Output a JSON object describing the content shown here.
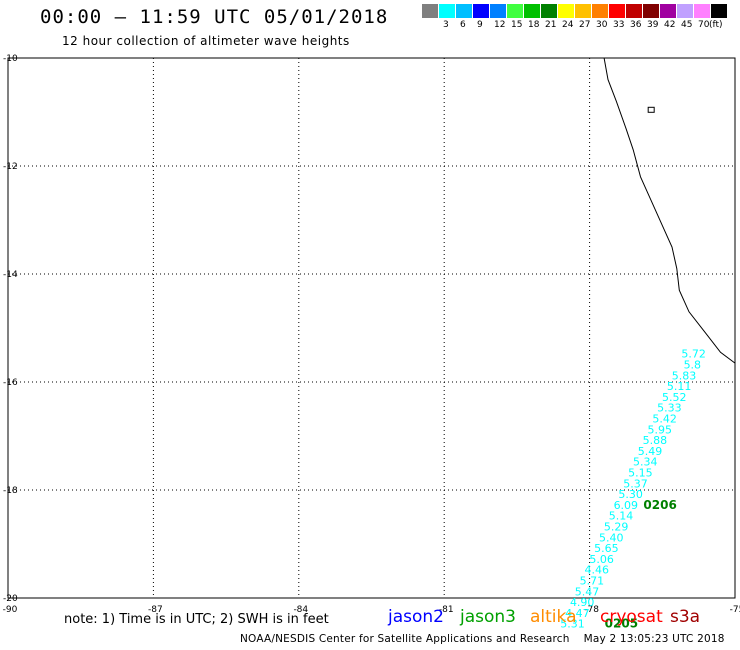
{
  "header": {
    "title": "00:00 – 11:59 UTC 05/01/2018",
    "subtitle": "12 hour collection of altimeter wave heights"
  },
  "legend": {
    "unit": "(ft)",
    "swatches": [
      {
        "color": "#7f7f7f",
        "label": ""
      },
      {
        "color": "#00ffff",
        "label": "3"
      },
      {
        "color": "#00bfff",
        "label": "6"
      },
      {
        "color": "#0000ff",
        "label": "9"
      },
      {
        "color": "#0080ff",
        "label": "12"
      },
      {
        "color": "#40ff40",
        "label": "15"
      },
      {
        "color": "#00c000",
        "label": "18"
      },
      {
        "color": "#008000",
        "label": "21"
      },
      {
        "color": "#ffff00",
        "label": "24"
      },
      {
        "color": "#ffc000",
        "label": "27"
      },
      {
        "color": "#ff8000",
        "label": "30"
      },
      {
        "color": "#ff0000",
        "label": "33"
      },
      {
        "color": "#c00000",
        "label": "36"
      },
      {
        "color": "#800000",
        "label": "39"
      },
      {
        "color": "#a000a0",
        "label": "42"
      },
      {
        "color": "#c0a0ff",
        "label": "45"
      },
      {
        "color": "#ff80ff",
        "label": "70"
      },
      {
        "color": "#000000",
        "label": ""
      }
    ]
  },
  "map": {
    "lon_range": [
      -90,
      -75
    ],
    "lat_range": [
      -20,
      -10
    ],
    "lon_ticks": [
      "-90",
      "-87",
      "-84",
      "-81",
      "-78",
      "-75"
    ],
    "lat_ticks": [
      "-10",
      "-12",
      "-14",
      "-16",
      "-18",
      "-20"
    ],
    "track_color": "#00ffff",
    "pass_label_color": "#008000",
    "track_readings": [
      {
        "lon": -75.6,
        "lat": -15.55,
        "label": "5.72"
      },
      {
        "lon": -75.7,
        "lat": -15.75,
        "label": "5.8"
      },
      {
        "lon": -75.8,
        "lat": -15.95,
        "label": "5.83"
      },
      {
        "lon": -75.9,
        "lat": -16.15,
        "label": "5.11"
      },
      {
        "lon": -76.0,
        "lat": -16.35,
        "label": "5.52"
      },
      {
        "lon": -76.1,
        "lat": -16.55,
        "label": "5.33"
      },
      {
        "lon": -76.2,
        "lat": -16.75,
        "label": "5.42"
      },
      {
        "lon": -76.3,
        "lat": -16.95,
        "label": "5.95"
      },
      {
        "lon": -76.4,
        "lat": -17.15,
        "label": "5.88"
      },
      {
        "lon": -76.5,
        "lat": -17.35,
        "label": "5.49"
      },
      {
        "lon": -76.6,
        "lat": -17.55,
        "label": "5.34"
      },
      {
        "lon": -76.7,
        "lat": -17.75,
        "label": "5.15"
      },
      {
        "lon": -76.8,
        "lat": -17.95,
        "label": "5.37"
      },
      {
        "lon": -76.9,
        "lat": -18.15,
        "label": "5.30"
      },
      {
        "lon": -77.0,
        "lat": -18.35,
        "label": "6.09"
      },
      {
        "lon": -77.1,
        "lat": -18.55,
        "label": "5.14"
      },
      {
        "lon": -77.2,
        "lat": -18.75,
        "label": "5.29"
      },
      {
        "lon": -77.3,
        "lat": -18.95,
        "label": "5.40"
      },
      {
        "lon": -77.4,
        "lat": -19.15,
        "label": "5.65"
      },
      {
        "lon": -77.5,
        "lat": -19.35,
        "label": "5.06"
      },
      {
        "lon": -77.6,
        "lat": -19.55,
        "label": "4.46"
      },
      {
        "lon": -77.7,
        "lat": -19.75,
        "label": "5.71"
      },
      {
        "lon": -77.8,
        "lat": -19.95,
        "label": "5.47"
      },
      {
        "lon": -77.9,
        "lat": -20.15,
        "label": "4.90"
      },
      {
        "lon": -78.0,
        "lat": -20.35,
        "label": "4.47"
      },
      {
        "lon": -78.1,
        "lat": -20.55,
        "label": "5.31"
      }
    ],
    "pass_labels": [
      {
        "lon": -76.2,
        "lat": -18.35,
        "label": "0206"
      },
      {
        "lon": -77.0,
        "lat": -20.55,
        "label": "0205"
      }
    ],
    "coastline": [
      [
        -77.7,
        -10.0
      ],
      [
        -77.62,
        -10.4
      ],
      [
        -77.45,
        -10.8
      ],
      [
        -77.25,
        -11.3
      ],
      [
        -77.1,
        -11.7
      ],
      [
        -76.95,
        -12.2
      ],
      [
        -76.75,
        -12.6
      ],
      [
        -76.5,
        -13.1
      ],
      [
        -76.3,
        -13.5
      ],
      [
        -76.2,
        -13.9
      ],
      [
        -76.15,
        -14.3
      ],
      [
        -75.95,
        -14.7
      ],
      [
        -75.6,
        -15.1
      ],
      [
        -75.3,
        -15.45
      ],
      [
        -75.0,
        -15.65
      ]
    ]
  },
  "footer": {
    "note": "note: 1) Time is in UTC; 2) SWH is in feet",
    "satellites": [
      {
        "name": "jason2",
        "color": "#0000ff"
      },
      {
        "name": "jason3",
        "color": "#00a000"
      },
      {
        "name": "altika",
        "color": "#ff8c00"
      },
      {
        "name": "cryosat",
        "color": "#ff0000"
      },
      {
        "name": "s3a",
        "color": "#a00000"
      }
    ],
    "credit": "NOAA/NESDIS Center for Satellite Applications and Research",
    "timestamp": "May  2 13:05:23 UTC 2018"
  }
}
